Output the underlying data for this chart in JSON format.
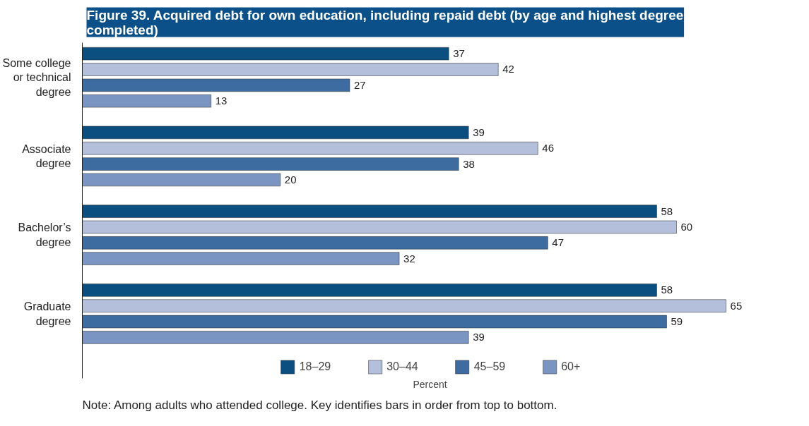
{
  "chart_data": {
    "type": "bar",
    "orientation": "horizontal",
    "title": "Figure 39. Acquired debt for own education, including repaid debt (by age and highest degree completed)",
    "xlabel": "Percent",
    "categories": [
      "Some college or technical degree",
      "Associate degree",
      "Bachelor’s degree",
      "Graduate degree"
    ],
    "series": [
      {
        "name": "18–29",
        "color": "#0b4f80",
        "values": [
          37,
          39,
          58,
          58
        ]
      },
      {
        "name": "30–44",
        "color": "#b4bfdc",
        "values": [
          42,
          46,
          60,
          65
        ]
      },
      {
        "name": "45–59",
        "color": "#3d6ca0",
        "values": [
          27,
          38,
          47,
          59
        ]
      },
      {
        "name": "60+",
        "color": "#7a95c2",
        "values": [
          13,
          20,
          32,
          39
        ]
      }
    ],
    "data_labels": true,
    "legend": "bottom",
    "annotations": [
      "Note: Among adults who attended college. Key identifies bars in order from top to bottom."
    ]
  }
}
